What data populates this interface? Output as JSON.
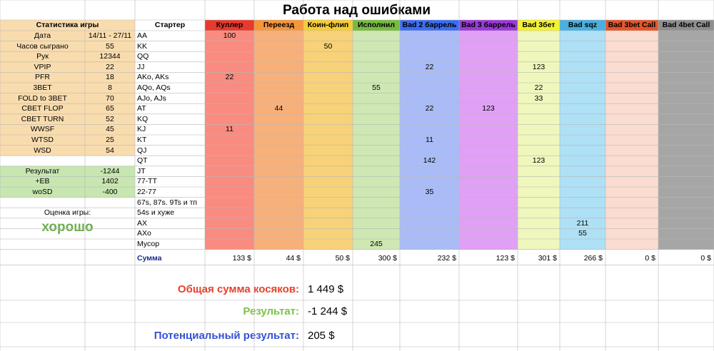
{
  "title": "Работа над ошибками",
  "stats": {
    "header": "Статистика игры",
    "rows": [
      {
        "label": "Дата",
        "value": "14/11 - 27/11"
      },
      {
        "label": "Часов сыграно",
        "value": "55"
      },
      {
        "label": "Рук",
        "value": "12344"
      },
      {
        "label": "VPIP",
        "value": "22"
      },
      {
        "label": "PFR",
        "value": "18"
      },
      {
        "label": "3BET",
        "value": "8"
      },
      {
        "label": "FOLD to 3BET",
        "value": "70"
      },
      {
        "label": "CBET FLOP",
        "value": "65"
      },
      {
        "label": "CBET TURN",
        "value": "52"
      },
      {
        "label": "WWSF",
        "value": "45"
      },
      {
        "label": "WTSD",
        "value": "25"
      },
      {
        "label": "WSD",
        "value": "54"
      }
    ],
    "results": [
      {
        "label": "Результат",
        "value": "-1244"
      },
      {
        "label": "+EB",
        "value": "1402"
      },
      {
        "label": "woSD",
        "value": "-400"
      }
    ],
    "rating_label": "Оценка игры:",
    "rating_value": "хорошо"
  },
  "starter_header": "Стартер",
  "columns": [
    {
      "label": "Куллер",
      "header_color": "#e83a2c",
      "body_color": "#f98b80"
    },
    {
      "label": "Переезд",
      "header_color": "#f6963a",
      "body_color": "#f7b07a"
    },
    {
      "label": "Коин-флип",
      "header_color": "#f7cc35",
      "body_color": "#f8d278"
    },
    {
      "label": "Исполнил",
      "header_color": "#77bb3f",
      "body_color": "#cfe7b2"
    },
    {
      "label": "Bad 2 баррель",
      "header_color": "#3c6cf1",
      "body_color": "#aabcf7"
    },
    {
      "label": "Bad 3 баррель",
      "header_color": "#9a39d9",
      "body_color": "#e0a0f5"
    },
    {
      "label": "Bad 3бет",
      "header_color": "#f2f230",
      "body_color": "#eff7bd"
    },
    {
      "label": "Bad sqz",
      "header_color": "#4aaedf",
      "body_color": "#aee0f6"
    },
    {
      "label": "Bad 3bet Call",
      "header_color": "#e3562a",
      "body_color": "#fbdcd0"
    },
    {
      "label": "Bad 4bet Call",
      "header_color": "#8e8e8e",
      "body_color": "#a6a6a6"
    }
  ],
  "starters": [
    {
      "name": "AA",
      "values": [
        "100",
        "",
        "",
        "",
        "",
        "",
        "",
        "",
        "",
        ""
      ]
    },
    {
      "name": "KK",
      "values": [
        "",
        "",
        "50",
        "",
        "",
        "",
        "",
        "",
        "",
        ""
      ]
    },
    {
      "name": "QQ",
      "values": [
        "",
        "",
        "",
        "",
        "",
        "",
        "",
        "",
        "",
        ""
      ]
    },
    {
      "name": "JJ",
      "values": [
        "",
        "",
        "",
        "",
        "22",
        "",
        "123",
        "",
        "",
        ""
      ]
    },
    {
      "name": "AKo, AKs",
      "values": [
        "22",
        "",
        "",
        "",
        "",
        "",
        "",
        "",
        "",
        ""
      ]
    },
    {
      "name": "AQo, AQs",
      "values": [
        "",
        "",
        "",
        "55",
        "",
        "",
        "22",
        "",
        "",
        ""
      ]
    },
    {
      "name": "AJo, AJs",
      "values": [
        "",
        "",
        "",
        "",
        "",
        "",
        "33",
        "",
        "",
        ""
      ]
    },
    {
      "name": "AT",
      "values": [
        "",
        "44",
        "",
        "",
        "22",
        "123",
        "",
        "",
        "",
        ""
      ]
    },
    {
      "name": "KQ",
      "values": [
        "",
        "",
        "",
        "",
        "",
        "",
        "",
        "",
        "",
        ""
      ]
    },
    {
      "name": "KJ",
      "values": [
        "11",
        "",
        "",
        "",
        "",
        "",
        "",
        "",
        "",
        ""
      ]
    },
    {
      "name": "KT",
      "values": [
        "",
        "",
        "",
        "",
        "11",
        "",
        "",
        "",
        "",
        ""
      ]
    },
    {
      "name": "QJ",
      "values": [
        "",
        "",
        "",
        "",
        "",
        "",
        "",
        "",
        "",
        ""
      ]
    },
    {
      "name": "QT",
      "values": [
        "",
        "",
        "",
        "",
        "142",
        "",
        "123",
        "",
        "",
        ""
      ]
    },
    {
      "name": "JT",
      "values": [
        "",
        "",
        "",
        "",
        "",
        "",
        "",
        "",
        "",
        ""
      ]
    },
    {
      "name": "77-TT",
      "values": [
        "",
        "",
        "",
        "",
        "",
        "",
        "",
        "",
        "",
        ""
      ]
    },
    {
      "name": "22-77",
      "values": [
        "",
        "",
        "",
        "",
        "35",
        "",
        "",
        "",
        "",
        ""
      ]
    },
    {
      "name": "67s, 87s. 9Ts и тп",
      "values": [
        "",
        "",
        "",
        "",
        "",
        "",
        "",
        "",
        "",
        ""
      ]
    },
    {
      "name": "54s и хуже",
      "values": [
        "",
        "",
        "",
        "",
        "",
        "",
        "",
        "",
        "",
        ""
      ]
    },
    {
      "name": "AX",
      "values": [
        "",
        "",
        "",
        "",
        "",
        "",
        "",
        "211",
        "",
        ""
      ]
    },
    {
      "name": "AXo",
      "values": [
        "",
        "",
        "",
        "",
        "",
        "",
        "",
        "55",
        "",
        ""
      ]
    },
    {
      "name": "Мусор",
      "values": [
        "",
        "",
        "",
        "245",
        "",
        "",
        "",
        "",
        "",
        ""
      ]
    }
  ],
  "sum_label": "Сумма",
  "sums": [
    "133 $",
    "44 $",
    "50 $",
    "300 $",
    "232 $",
    "123 $",
    "301 $",
    "266 $",
    "0 $",
    "0 $"
  ],
  "summary": [
    {
      "label": "Общая сумма косяков:",
      "value": "1 449 $",
      "color": "#e8402c"
    },
    {
      "label": "Результат:",
      "value": "-1 244 $",
      "color": "#7cc14a"
    },
    {
      "label": "Потенциальный результат:",
      "value": "205 $",
      "color": "#3551d6"
    }
  ],
  "colors": {
    "stats_bg": "#f9dcae",
    "results_bg": "#c8e6b0",
    "grid": "#b8b8b8"
  }
}
